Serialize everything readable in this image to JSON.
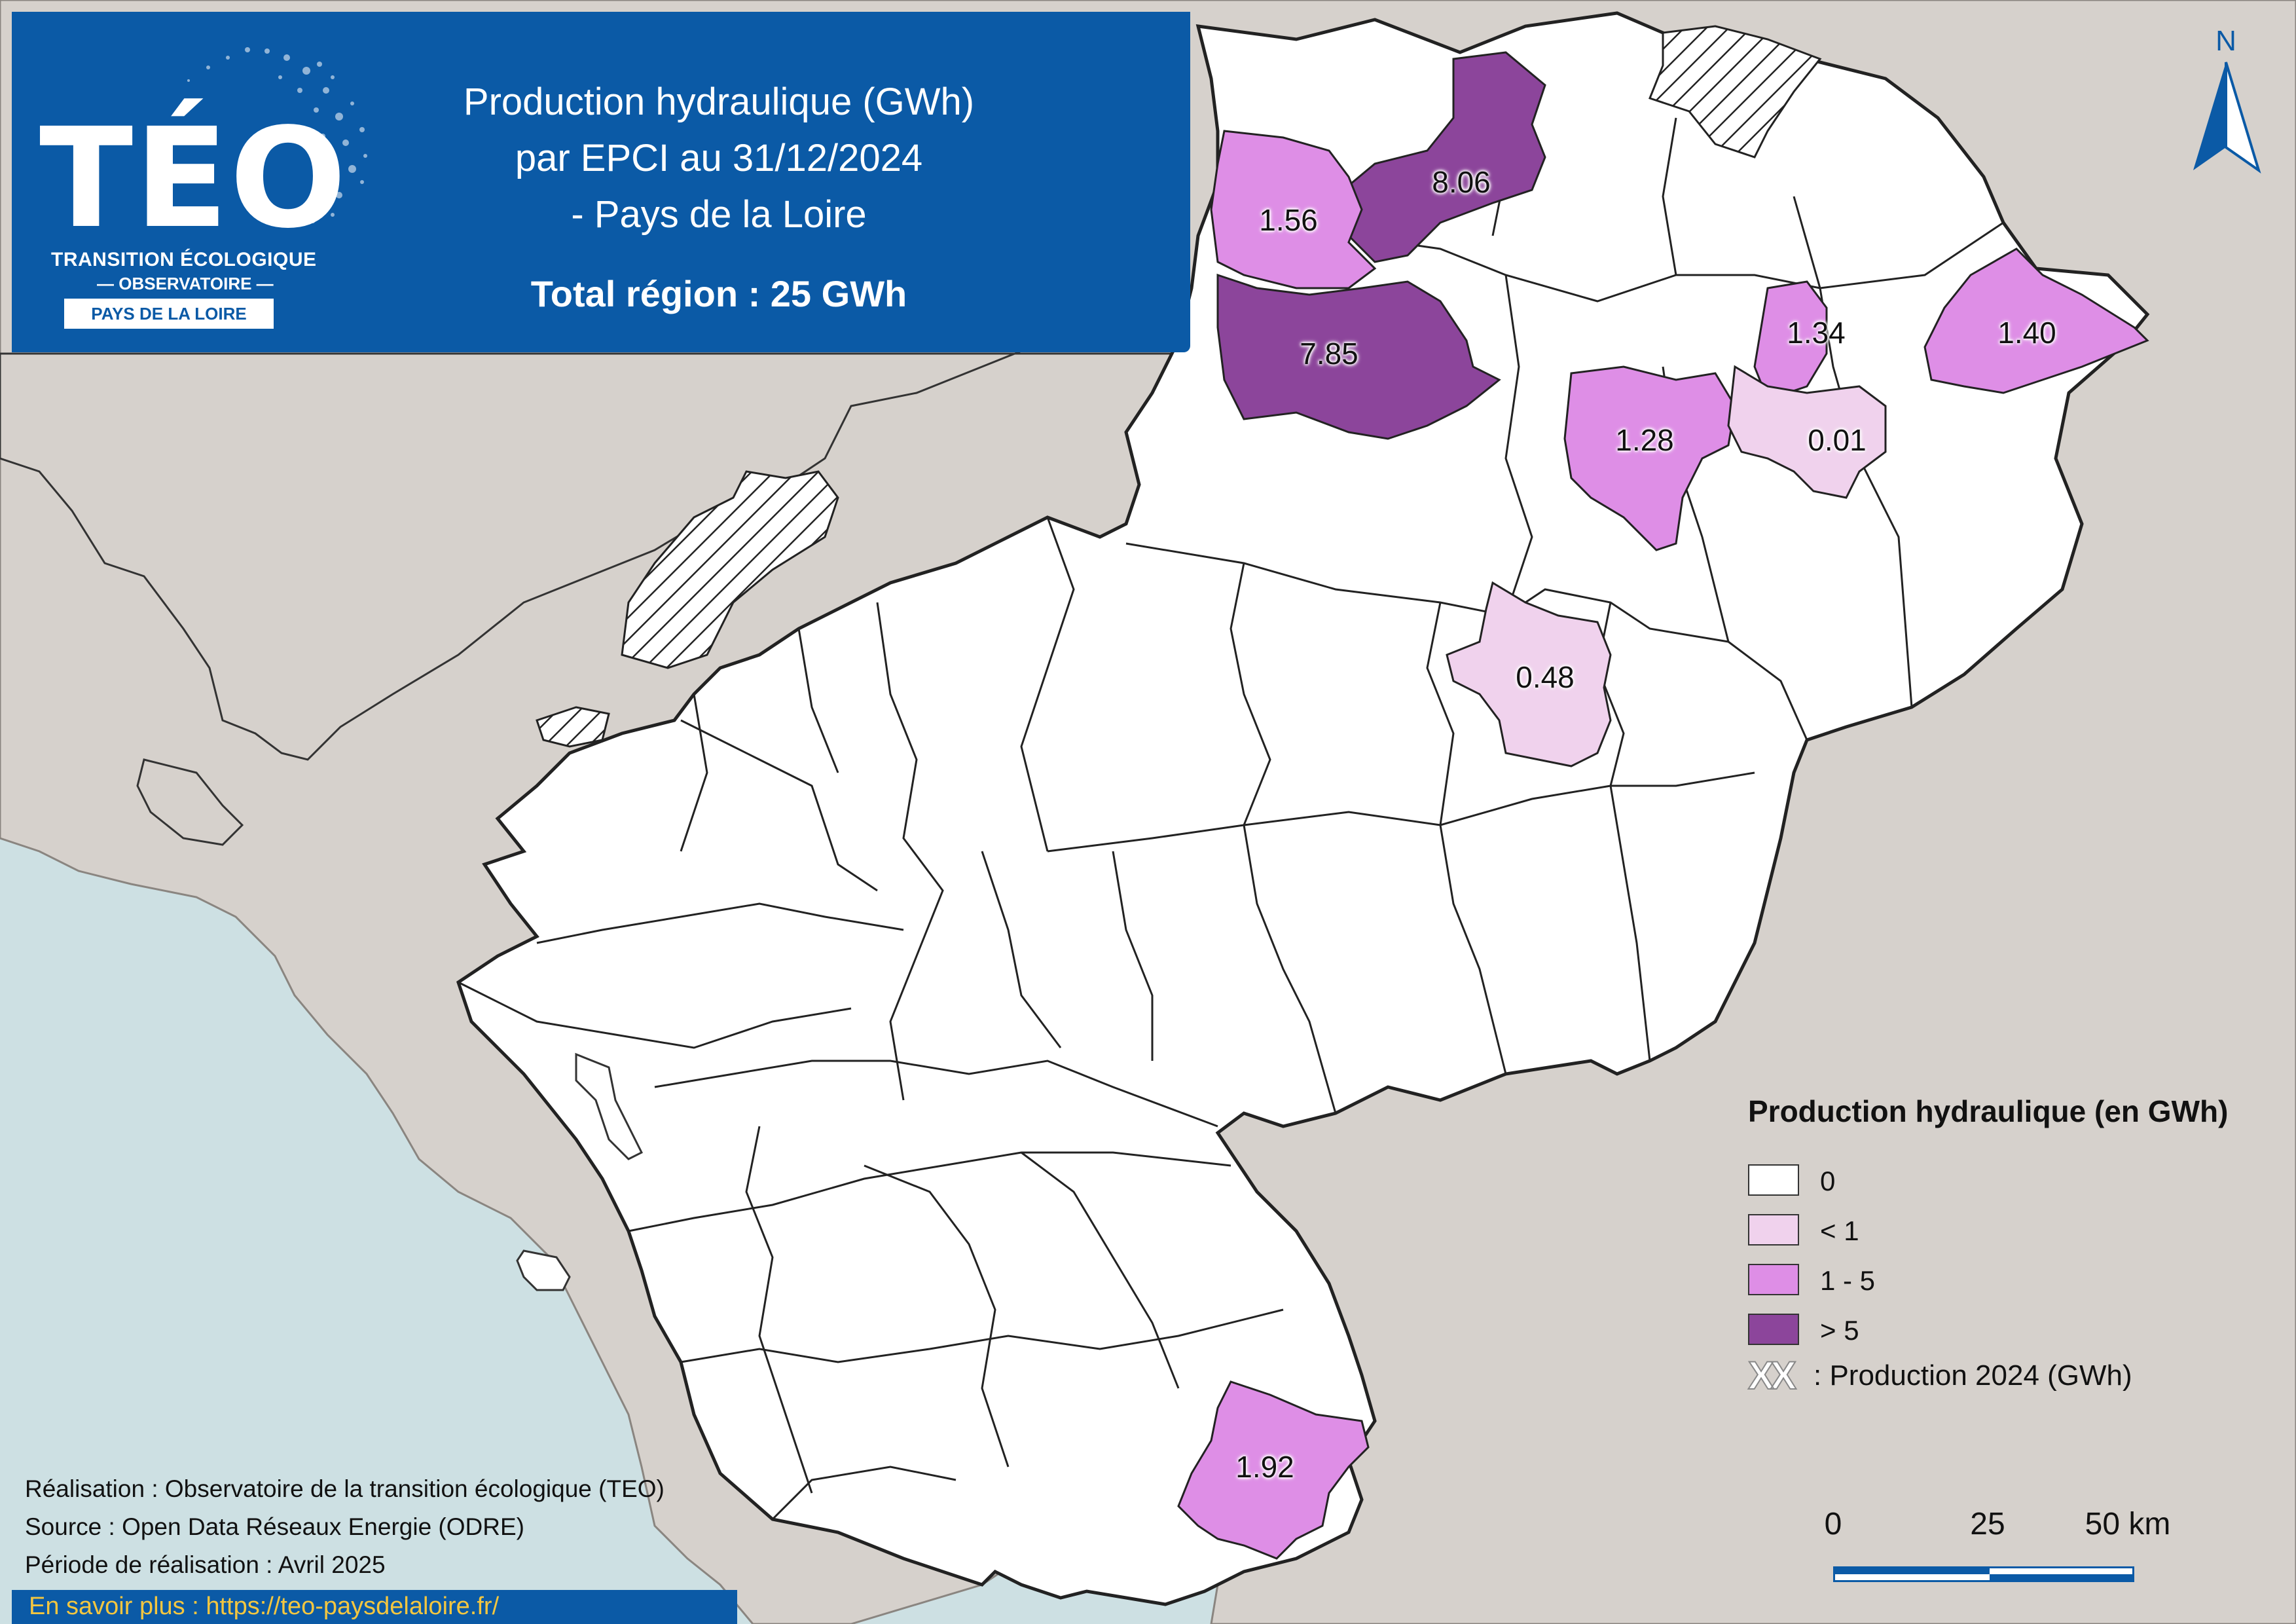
{
  "header": {
    "logo_word": "TÉO",
    "logo_subtitle_1": "TRANSITION ÉCOLOGIQUE",
    "logo_subtitle_2": "— OBSERVATOIRE —",
    "logo_region": "PAYS DE LA LOIRE",
    "title_lines": [
      "Production hydraulique (GWh)",
      "par EPCI au 31/12/2024",
      "- Pays de la Loire"
    ],
    "total": "Total région : 25 GWh"
  },
  "map": {
    "north_label": "N",
    "colors": {
      "sea": "#cde0e3",
      "land_outside": "#d6d1cc",
      "class_0": "#ffffff",
      "class_lt1": "#f0d2ed",
      "class_1_5": "#de8ee6",
      "class_gt5": "#8c459b",
      "brand_blue": "#0b5aa6"
    },
    "epci_values": [
      {
        "label": "8.06",
        "class": "gt5"
      },
      {
        "label": "1.56",
        "class": "1_5"
      },
      {
        "label": "7.85",
        "class": "gt5"
      },
      {
        "label": "1.34",
        "class": "1_5"
      },
      {
        "label": "1.40",
        "class": "1_5"
      },
      {
        "label": "1.28",
        "class": "1_5"
      },
      {
        "label": "0.01",
        "class": "lt1"
      },
      {
        "label": "0.48",
        "class": "lt1"
      },
      {
        "label": "1.92",
        "class": "1_5"
      }
    ]
  },
  "legend": {
    "title": "Production hydraulique (en GWh)",
    "items": [
      {
        "label": "0",
        "color": "#ffffff"
      },
      {
        "label": "< 1",
        "color": "#f0d2ed"
      },
      {
        "label": "1 - 5",
        "color": "#de8ee6"
      },
      {
        "label": "> 5",
        "color": "#8c459b"
      }
    ],
    "value_mark": "XX",
    "value_label": ": Production 2024 (GWh)"
  },
  "scale": {
    "labels": [
      "0",
      "25",
      "50 km"
    ]
  },
  "credits": {
    "lines": [
      "Réalisation : Observatoire de la transition écologique (TEO)",
      "Source : Open Data Réseaux Energie (ODRE)",
      "Période de réalisation : Avril 2025"
    ],
    "more_info": "En savoir plus : https://teo-paysdelaloire.fr/"
  }
}
